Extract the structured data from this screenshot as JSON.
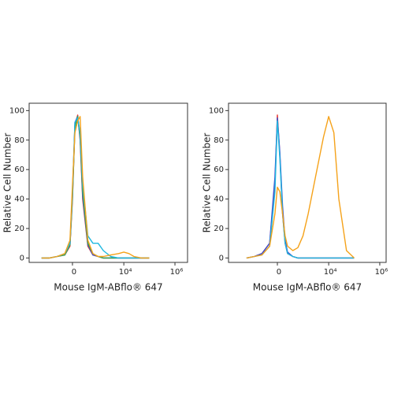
{
  "chart_data": [
    {
      "type": "line",
      "xscale": "symlog",
      "ylabel": "Relative Cell Number",
      "xlabel": "Mouse IgM-ABflo® 647",
      "x": [
        -1500,
        -700,
        -300,
        -100,
        -25,
        0,
        25,
        60,
        100,
        150,
        300,
        530,
        900,
        1500,
        3000,
        6200,
        10000,
        16000,
        25000,
        50000,
        100000
      ],
      "series": [
        {
          "color": "#e8312b",
          "values": [
            0,
            0,
            1,
            2,
            8,
            40,
            90,
            97,
            80,
            40,
            8,
            2,
            1,
            0,
            0,
            0,
            0,
            0,
            0,
            0,
            0
          ]
        },
        {
          "color": "#3b4fcf",
          "values": [
            0,
            0,
            1,
            2,
            9,
            44,
            92,
            96,
            82,
            42,
            9,
            2,
            1,
            0,
            0,
            0,
            0,
            0,
            0,
            0,
            0
          ]
        },
        {
          "color": "#35a853",
          "values": [
            0,
            0,
            1,
            2,
            9,
            42,
            88,
            96,
            82,
            45,
            10,
            3,
            1,
            0,
            0,
            0,
            0,
            0,
            0,
            0,
            0
          ]
        },
        {
          "color": "#1fb8e0",
          "values": [
            0,
            0,
            1,
            3,
            10,
            45,
            92,
            95,
            85,
            50,
            15,
            10,
            10,
            5,
            1,
            0,
            0,
            0,
            0,
            0,
            0
          ]
        },
        {
          "color": "#f5a21a",
          "values": [
            0,
            0,
            1,
            3,
            12,
            50,
            85,
            93,
            96,
            55,
            12,
            3,
            1,
            1,
            2,
            3,
            4,
            3,
            1,
            0,
            0
          ]
        }
      ],
      "xlim": [
        -4800,
        3100000
      ],
      "ylim": [
        -3,
        105
      ],
      "xticks": [
        0,
        {
          "value": 10000,
          "label": "10⁴"
        },
        {
          "value": 1000000,
          "label": "10⁶"
        }
      ],
      "yticks": [
        0,
        20,
        40,
        60,
        80,
        100
      ]
    },
    {
      "type": "line",
      "xscale": "symlog",
      "ylabel": "Relative Cell Number",
      "xlabel": "Mouse IgM-ABflo® 647",
      "x": [
        -1500,
        -700,
        -300,
        -100,
        -25,
        0,
        25,
        60,
        100,
        150,
        300,
        530,
        900,
        1500,
        3000,
        6200,
        10000,
        16000,
        25000,
        50000,
        100000
      ],
      "series": [
        {
          "color": "#e8312b",
          "values": [
            0,
            1,
            3,
            10,
            50,
            97,
            70,
            30,
            10,
            3,
            1,
            0,
            0,
            0,
            0,
            0,
            0,
            0,
            0,
            0,
            0
          ]
        },
        {
          "color": "#3b4fcf",
          "values": [
            0,
            1,
            3,
            10,
            55,
            95,
            72,
            35,
            12,
            4,
            1,
            0,
            0,
            0,
            0,
            0,
            0,
            0,
            0,
            0,
            0
          ]
        },
        {
          "color": "#1fb8e0",
          "values": [
            0,
            1,
            2,
            8,
            45,
            93,
            68,
            30,
            10,
            3,
            1,
            0,
            0,
            0,
            0,
            0,
            0,
            0,
            0,
            0,
            0
          ]
        },
        {
          "color": "#f5a21a",
          "values": [
            0,
            1,
            2,
            8,
            30,
            48,
            45,
            30,
            15,
            8,
            5,
            7,
            15,
            30,
            55,
            82,
            96,
            85,
            40,
            5,
            0
          ]
        }
      ],
      "xlim": [
        -8000,
        1770000
      ],
      "ylim": [
        -3,
        105
      ],
      "xticks": [
        0,
        {
          "value": 10000,
          "label": "10⁴"
        },
        {
          "value": 1000000,
          "label": "10⁶"
        }
      ],
      "yticks": [
        0,
        20,
        40,
        60,
        80,
        100
      ]
    }
  ]
}
